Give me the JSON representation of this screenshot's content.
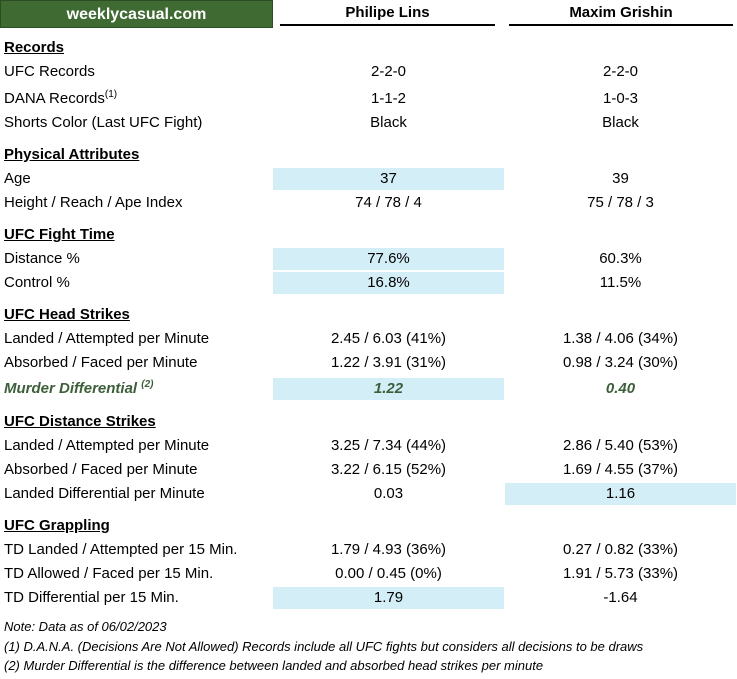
{
  "header": {
    "brand": "weeklycasual.com",
    "fighter1": "Philipe Lins",
    "fighter2": "Maxim Grishin"
  },
  "sections": {
    "records": {
      "title": "Records",
      "ufc_records": {
        "label": "UFC Records",
        "f1": "2-2-0",
        "f2": "2-2-0"
      },
      "dana_records": {
        "label": "DANA Records",
        "sup": "(1)",
        "f1": "1-1-2",
        "f2": "1-0-3"
      },
      "shorts_color": {
        "label": "Shorts Color (Last UFC Fight)",
        "f1": "Black",
        "f2": "Black"
      }
    },
    "physical": {
      "title": "Physical Attributes",
      "age": {
        "label": "Age",
        "f1": "37",
        "f2": "39"
      },
      "height_reach": {
        "label": "Height / Reach / Ape Index",
        "f1": "74 / 78 / 4",
        "f2": "75 / 78 / 3"
      }
    },
    "fight_time": {
      "title": "UFC Fight Time",
      "distance": {
        "label": "Distance %",
        "f1": "77.6%",
        "f2": "60.3%"
      },
      "control": {
        "label": "Control %",
        "f1": "16.8%",
        "f2": "11.5%"
      }
    },
    "head_strikes": {
      "title": "UFC Head Strikes",
      "landed": {
        "label": "Landed / Attempted per Minute",
        "f1": "2.45 / 6.03 (41%)",
        "f2": "1.38 / 4.06 (34%)"
      },
      "absorbed": {
        "label": "Absorbed / Faced per Minute",
        "f1": "1.22 / 3.91 (31%)",
        "f2": "0.98 / 3.24 (30%)"
      },
      "murder": {
        "label": "Murder Differential",
        "sup": "(2)",
        "f1": "1.22",
        "f2": "0.40"
      }
    },
    "distance_strikes": {
      "title": "UFC Distance Strikes",
      "landed": {
        "label": "Landed / Attempted per Minute",
        "f1": "3.25 / 7.34 (44%)",
        "f2": "2.86 / 5.40 (53%)"
      },
      "absorbed": {
        "label": "Absorbed / Faced per Minute",
        "f1": "3.22 / 6.15 (52%)",
        "f2": "1.69 / 4.55 (37%)"
      },
      "differential": {
        "label": "Landed Differential per Minute",
        "f1": "0.03",
        "f2": "1.16"
      }
    },
    "grappling": {
      "title": "UFC Grappling",
      "td_landed": {
        "label": "TD Landed / Attempted per 15 Min.",
        "f1": "1.79 / 4.93 (36%)",
        "f2": "0.27 / 0.82 (33%)"
      },
      "td_allowed": {
        "label": "TD Allowed / Faced per 15 Min.",
        "f1": "0.00 / 0.45 (0%)",
        "f2": "1.91 / 5.73 (33%)"
      },
      "td_diff": {
        "label": "TD Differential per 15 Min.",
        "f1": "1.79",
        "f2": "-1.64"
      }
    }
  },
  "notes": {
    "date": "Note: Data as of 06/02/2023",
    "note1": "(1) D.A.N.A. (Decisions Are Not Allowed) Records include all UFC fights but considers all decisions to be draws",
    "note2": "(2) Murder Differential is the difference between landed and absorbed head strikes per minute"
  },
  "colors": {
    "brand_bg": "#3f6b32",
    "highlight": "#d4eef8",
    "murder_text": "#3c5f3a"
  }
}
